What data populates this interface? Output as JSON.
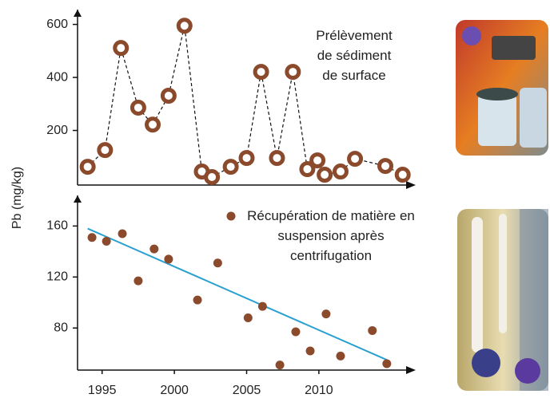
{
  "chart_data": [
    {
      "type": "line",
      "xlim": [
        1993.3,
        2016.7
      ],
      "ylim": [
        0,
        656
      ],
      "yticks": [
        200,
        400,
        600
      ],
      "series": [
        {
          "name": "Prélèvement de sédiment de surface",
          "color": "#8b4a2b",
          "x": [
            1994.0,
            1995.2,
            1996.3,
            1997.5,
            1998.5,
            1999.6,
            2000.7,
            2001.9,
            2002.6,
            2003.9,
            2005.0,
            2006.0,
            2007.1,
            2008.2,
            2009.2,
            2009.9,
            2010.4,
            2011.5,
            2012.5,
            2014.6,
            2015.8
          ],
          "values": [
            63,
            126,
            511,
            286,
            222,
            331,
            595,
            45,
            24,
            63,
            96,
            421,
            96,
            421,
            54,
            87,
            33,
            45,
            93,
            66,
            33
          ]
        }
      ]
    },
    {
      "type": "scatter",
      "ylabel": "Pb (mg/kg)",
      "xlim": [
        1993.3,
        2016.7
      ],
      "ylim": [
        47,
        184
      ],
      "xticks": [
        1995,
        2000,
        2005,
        2010
      ],
      "yticks": [
        80,
        120,
        160
      ],
      "series": [
        {
          "name": "Récupération de matière en suspension après centrifugation",
          "color": "#8b4a2b",
          "x": [
            1994.3,
            1995.3,
            1996.4,
            1997.5,
            1998.6,
            1999.6,
            2001.6,
            2003.0,
            2005.1,
            2006.1,
            2007.3,
            2008.4,
            2009.4,
            2010.5,
            2011.5,
            2013.7,
            2014.7
          ],
          "values": [
            151,
            148,
            154,
            117,
            142,
            134,
            102,
            131,
            88,
            97,
            51,
            77,
            62,
            91,
            58,
            78,
            52
          ]
        }
      ],
      "trend": {
        "color": "#2aa0d0",
        "x": [
          1994.0,
          2014.7
        ],
        "values": [
          158,
          55
        ]
      }
    }
  ]
}
